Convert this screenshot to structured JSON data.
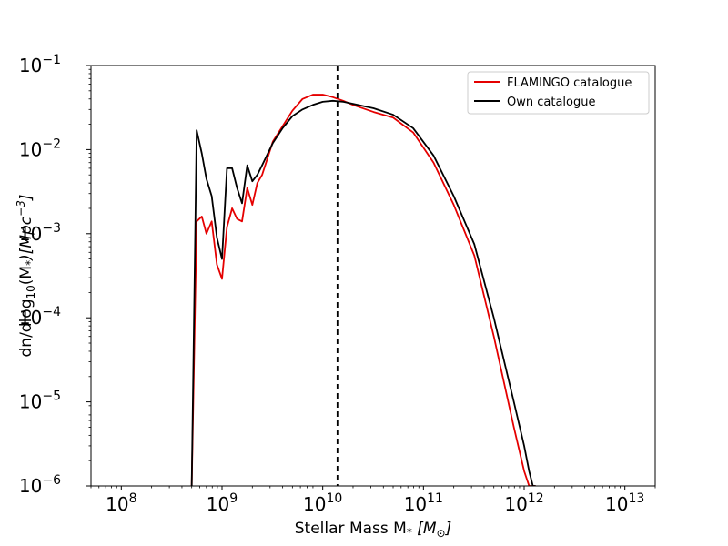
{
  "chart_data": {
    "type": "line",
    "xscale": "log",
    "yscale": "log",
    "xlim": [
      50000000,
      20000000000000
    ],
    "ylim": [
      1e-06,
      0.1
    ],
    "xlabel": {
      "main": "Stellar Mass M",
      "sub": "*",
      "unit": "[M",
      "unit_sub": "⊙",
      "close": "]"
    },
    "ylabel": {
      "pre": "dn/dlog",
      "sub": "10",
      "mid": "(M",
      "mid_sub": "*",
      "post": ")[Mpc",
      "sup": "−3",
      "end": "]"
    },
    "x_ticks": [
      {
        "base": "10",
        "exp": "8",
        "value": 100000000
      },
      {
        "base": "10",
        "exp": "9",
        "value": 1000000000
      },
      {
        "base": "10",
        "exp": "10",
        "value": 10000000000
      },
      {
        "base": "10",
        "exp": "11",
        "value": 100000000000
      },
      {
        "base": "10",
        "exp": "12",
        "value": 1000000000000
      },
      {
        "base": "10",
        "exp": "13",
        "value": 10000000000000
      }
    ],
    "y_ticks": [
      {
        "base": "10",
        "exp": "−6",
        "value": 1e-06
      },
      {
        "base": "10",
        "exp": "−5",
        "value": 1e-05
      },
      {
        "base": "10",
        "exp": "−4",
        "value": 0.0001
      },
      {
        "base": "10",
        "exp": "−3",
        "value": 0.001
      },
      {
        "base": "10",
        "exp": "−2",
        "value": 0.01
      },
      {
        "base": "10",
        "exp": "−1",
        "value": 0.1
      }
    ],
    "vline": {
      "x": 14000000000,
      "style": "dashed",
      "color": "#000000"
    },
    "legend_position": "upper right",
    "grid": false,
    "series": [
      {
        "name": "FLAMINGO catalogue",
        "color": "#e50000",
        "x": [
          500000000.0,
          560000000.0,
          630000000.0,
          700000000.0,
          790000000.0,
          890000000.0,
          1000000000.0,
          1120000000.0,
          1260000000.0,
          1410000000.0,
          1580000000.0,
          1780000000.0,
          2000000000.0,
          2240000000.0,
          2500000000.0,
          3200000000.0,
          4000000000.0,
          5000000000.0,
          6300000000.0,
          8000000000.0,
          10000000000.0,
          12600000000.0,
          16000000000.0,
          20000000000.0,
          32000000000.0,
          50000000000.0,
          79000000000.0,
          126000000000.0,
          200000000000.0,
          320000000000.0,
          500000000000.0,
          790000000000.0,
          1000000000000.0,
          1120000000000.0,
          1220000000000.0,
          1300000000000.0
        ],
        "y": [
          1e-06,
          0.0014,
          0.0016,
          0.001,
          0.0014,
          0.00043,
          0.00029,
          0.0012,
          0.002,
          0.0015,
          0.0014,
          0.0035,
          0.0022,
          0.004,
          0.005,
          0.0125,
          0.019,
          0.029,
          0.04,
          0.045,
          0.045,
          0.042,
          0.038,
          0.034,
          0.028,
          0.024,
          0.016,
          0.007,
          0.0022,
          0.00055,
          6e-05,
          5e-06,
          1.5e-06,
          1e-06,
          1e-06,
          1e-06
        ]
      },
      {
        "name": "Own catalogue",
        "color": "#000000",
        "x": [
          500000000.0,
          560000000.0,
          630000000.0,
          700000000.0,
          790000000.0,
          890000000.0,
          1000000000.0,
          1120000000.0,
          1260000000.0,
          1410000000.0,
          1580000000.0,
          1780000000.0,
          2000000000.0,
          2240000000.0,
          2500000000.0,
          3200000000.0,
          4000000000.0,
          5000000000.0,
          6300000000.0,
          8000000000.0,
          10000000000.0,
          12600000000.0,
          16000000000.0,
          20000000000.0,
          32000000000.0,
          50000000000.0,
          79000000000.0,
          126000000000.0,
          200000000000.0,
          320000000000.0,
          500000000000.0,
          790000000000.0,
          1000000000000.0,
          1120000000000.0,
          1220000000000.0,
          1300000000000.0
        ],
        "y": [
          1e-06,
          0.017,
          0.009,
          0.0045,
          0.0028,
          0.0009,
          0.0005,
          0.006,
          0.006,
          0.0035,
          0.0023,
          0.0065,
          0.0042,
          0.005,
          0.0065,
          0.012,
          0.018,
          0.025,
          0.03,
          0.034,
          0.037,
          0.038,
          0.037,
          0.035,
          0.031,
          0.026,
          0.018,
          0.0085,
          0.0028,
          0.00075,
          0.0001,
          1e-05,
          3e-06,
          1.5e-06,
          1e-06,
          1e-06
        ]
      }
    ]
  }
}
